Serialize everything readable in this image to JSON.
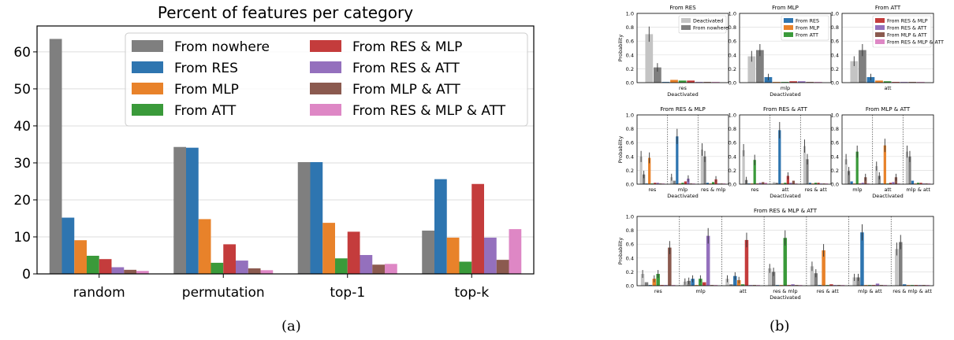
{
  "colors": {
    "From nowhere": "#7f7f7f",
    "From RES": "#2e75b0",
    "From MLP": "#e8822a",
    "From ATT": "#3a9a3a",
    "From RES & MLP": "#c43c3c",
    "From RES & ATT": "#9470bd",
    "From MLP & ATT": "#8b5a4f",
    "From RES & MLP & ATT": "#de87c5",
    "Deactivated": "#c4c4c4",
    "grid": "#dddddd"
  },
  "captions": {
    "a": "(a)",
    "b": "(b)"
  },
  "chart_data": [
    {
      "type": "bar",
      "title": "Percent of features per category",
      "xlabel": "",
      "ylabel": "",
      "categories": [
        "random",
        "permutation",
        "top-1",
        "top-k"
      ],
      "ylim": [
        0,
        67
      ],
      "yticks": [
        0,
        10,
        20,
        30,
        40,
        50,
        60
      ],
      "grid": "horizontal",
      "legend": "top-right, 2 columns",
      "series": [
        {
          "name": "From nowhere",
          "values": [
            63.5,
            34.3,
            30.2,
            11.7
          ]
        },
        {
          "name": "From RES",
          "values": [
            15.2,
            34.1,
            30.2,
            25.6
          ]
        },
        {
          "name": "From MLP",
          "values": [
            9.1,
            14.8,
            13.8,
            9.8
          ]
        },
        {
          "name": "From ATT",
          "values": [
            4.9,
            3.0,
            4.2,
            3.3
          ]
        },
        {
          "name": "From RES & MLP",
          "values": [
            4.0,
            8.0,
            11.4,
            24.3
          ]
        },
        {
          "name": "From RES & ATT",
          "values": [
            1.8,
            3.6,
            5.1,
            9.8
          ]
        },
        {
          "name": "From MLP & ATT",
          "values": [
            1.1,
            1.5,
            2.5,
            3.8
          ]
        },
        {
          "name": "From RES & MLP & ATT",
          "values": [
            0.8,
            1.0,
            2.7,
            12.1
          ]
        }
      ]
    },
    {
      "type": "bar",
      "title": "From RES",
      "xlabel": "Deactivated",
      "ylabel": "Probability",
      "ylim": [
        0,
        1.0
      ],
      "yticks": [
        "0.0",
        "0.2",
        "0.4",
        "0.6",
        "0.8",
        "1.0"
      ],
      "legend": "top-right",
      "legend_entries": [
        "Deactivated",
        "From nowhere"
      ],
      "groups": [
        "res"
      ],
      "values": [
        [
          0.7,
          0.22,
          0.01,
          0.04,
          0.03,
          0.03,
          0.01,
          0.01,
          0.01
        ]
      ]
    },
    {
      "type": "bar",
      "title": "From MLP",
      "xlabel": "Deactivated",
      "ylabel": "",
      "ylim": [
        0,
        1.0
      ],
      "yticks": [
        "0.0",
        "0.2",
        "0.4",
        "0.6",
        "0.8",
        "1.0"
      ],
      "legend": "top-right",
      "legend_entries": [
        "From RES",
        "From MLP",
        "From ATT"
      ],
      "groups": [
        "mlp"
      ],
      "values": [
        [
          0.38,
          0.47,
          0.08,
          0.01,
          0.01,
          0.02,
          0.02,
          0.01,
          0.01
        ]
      ]
    },
    {
      "type": "bar",
      "title": "From ATT",
      "xlabel": "Deactivated",
      "ylabel": "",
      "ylim": [
        0,
        1.0
      ],
      "yticks": [
        "0.0",
        "0.2",
        "0.4",
        "0.6",
        "0.8",
        "1.0"
      ],
      "legend": "top-right",
      "legend_entries": [
        "From RES & MLP",
        "From RES & ATT",
        "From MLP & ATT",
        "From RES & MLP & ATT"
      ],
      "groups": [
        "att"
      ],
      "values": [
        [
          0.31,
          0.47,
          0.08,
          0.03,
          0.02,
          0.01,
          0.01,
          0.01,
          0.01
        ]
      ]
    },
    {
      "type": "bar",
      "title": "From RES & MLP",
      "xlabel": "Deactivated",
      "ylabel": "Probability",
      "ylim": [
        0,
        1.0
      ],
      "yticks": [
        "0.0",
        "0.2",
        "0.4",
        "0.6",
        "0.8",
        "1.0"
      ],
      "groups": [
        "res",
        "mlp",
        "res & mlp"
      ],
      "values": [
        [
          0.4,
          0.14,
          0.01,
          0.38,
          0.01,
          0.02,
          0.02,
          0.01,
          0.01
        ],
        [
          0.1,
          0.05,
          0.69,
          0.01,
          0.02,
          0.04,
          0.08,
          0.01,
          0.01
        ],
        [
          0.5,
          0.4,
          0.02,
          0.01,
          0.03,
          0.07,
          0.01,
          0.01,
          0.01
        ]
      ]
    },
    {
      "type": "bar",
      "title": "From RES & ATT",
      "xlabel": "Deactivated",
      "ylabel": "",
      "ylim": [
        0,
        1.0
      ],
      "yticks": [
        "0.0",
        "0.2",
        "0.4",
        "0.6",
        "0.8",
        "1.0"
      ],
      "groups": [
        "res",
        "att",
        "res & att"
      ],
      "values": [
        [
          0.49,
          0.06,
          0.01,
          0.01,
          0.35,
          0.01,
          0.02,
          0.03,
          0.02
        ],
        [
          0.03,
          0.02,
          0.78,
          0.01,
          0.02,
          0.12,
          0.02,
          0.05,
          0.01
        ],
        [
          0.55,
          0.36,
          0.02,
          0.01,
          0.02,
          0.02,
          0.01,
          0.01,
          0.01
        ]
      ]
    },
    {
      "type": "bar",
      "title": "From MLP & ATT",
      "xlabel": "Deactivated",
      "ylabel": "",
      "ylim": [
        0,
        1.0
      ],
      "yticks": [
        "0.0",
        "0.2",
        "0.4",
        "0.6",
        "0.8",
        "1.0"
      ],
      "groups": [
        "mlp",
        "att",
        "mlp & att"
      ],
      "values": [
        [
          0.36,
          0.19,
          0.04,
          0.01,
          0.47,
          0.01,
          0.02,
          0.1,
          0.01
        ],
        [
          0.26,
          0.12,
          0.01,
          0.56,
          0.01,
          0.02,
          0.03,
          0.1,
          0.01
        ],
        [
          0.47,
          0.4,
          0.05,
          0.01,
          0.02,
          0.02,
          0.01,
          0.01,
          0.01
        ]
      ]
    },
    {
      "type": "bar",
      "title": "From RES & MLP & ATT",
      "xlabel": "Deactivated",
      "ylabel": "Probability",
      "ylim": [
        0,
        1.0
      ],
      "yticks": [
        "0.0",
        "0.2",
        "0.4",
        "0.6",
        "0.8",
        "1.0"
      ],
      "groups": [
        "res",
        "mlp",
        "att",
        "res & mlp",
        "res & att",
        "mlp & att",
        "res & mlp & att"
      ],
      "values": [
        [
          0.17,
          0.05,
          0.01,
          0.1,
          0.17,
          0.01,
          0.01,
          0.55,
          0.01
        ],
        [
          0.06,
          0.07,
          0.1,
          0.01,
          0.1,
          0.05,
          0.72,
          0.01,
          0.01
        ],
        [
          0.1,
          0.02,
          0.14,
          0.08,
          0.02,
          0.66,
          0.01,
          0.01,
          0.01
        ],
        [
          0.25,
          0.2,
          0.01,
          0.01,
          0.69,
          0.01,
          0.02,
          0.01,
          0.01
        ],
        [
          0.28,
          0.18,
          0.01,
          0.51,
          0.01,
          0.02,
          0.01,
          0.01,
          0.01
        ],
        [
          0.12,
          0.12,
          0.77,
          0.01,
          0.01,
          0.01,
          0.03,
          0.01,
          0.01
        ],
        [
          0.53,
          0.63,
          0.02,
          0.01,
          0.01,
          0.01,
          0.01,
          0.01,
          0.01
        ]
      ]
    }
  ]
}
